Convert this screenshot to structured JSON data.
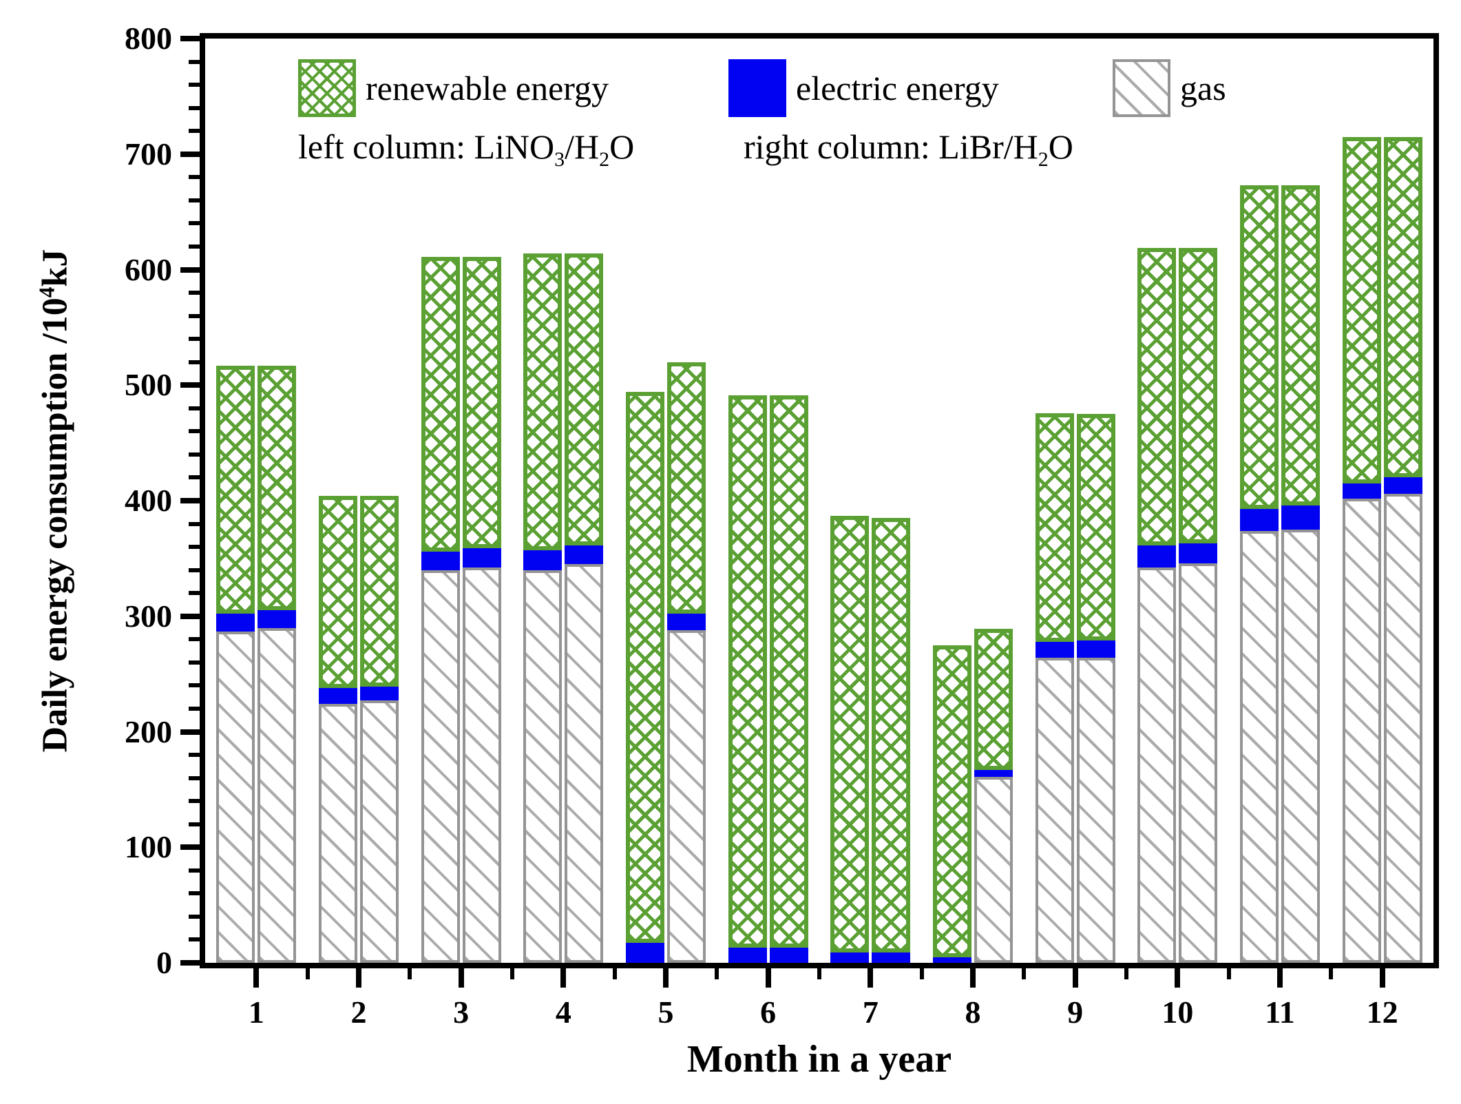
{
  "figure": {
    "y_axis_title": {
      "pre": "Daily energy consumption /10",
      "sup": "4",
      "post": "kJ"
    },
    "x_axis_title": "Month in a year",
    "legend": {
      "renewable_label": "renewable energy",
      "electric_label": "electric energy",
      "gas_label": "gas",
      "note_left": {
        "pre": "left column: LiNO",
        "sub1": "3",
        "mid": "/H",
        "sub2": "2",
        "post": "O"
      },
      "note_right": {
        "pre": "right column: LiBr/H",
        "sub1": "2",
        "post": "O"
      }
    },
    "colors": {
      "renewable": "#5aa033",
      "electric": "#0202f2",
      "gas_line": "#ababab",
      "gas_border": "#949494",
      "axis": "#000000"
    }
  },
  "chart_data": {
    "type": "bar",
    "stacked": true,
    "title": "",
    "xlabel": "Month in a year",
    "ylabel": "Daily energy consumption /10^4 kJ",
    "ylim": [
      0,
      800
    ],
    "ytick_major": 100,
    "ytick_minor": 20,
    "grid": false,
    "legend_position": "top-inside",
    "categories": [
      1,
      2,
      3,
      4,
      5,
      6,
      7,
      8,
      9,
      10,
      11,
      12
    ],
    "columns": [
      {
        "key": "left",
        "label": "LiNO3/H2O"
      },
      {
        "key": "right",
        "label": "LiBr/H2O"
      }
    ],
    "series_order": [
      "gas",
      "electric",
      "renewable"
    ],
    "months": [
      {
        "month": 1,
        "left": {
          "gas": 287,
          "electric": 15,
          "renewable": 215
        },
        "right": {
          "gas": 290,
          "electric": 15,
          "renewable": 212
        }
      },
      {
        "month": 2,
        "left": {
          "gas": 224,
          "electric": 14,
          "renewable": 166
        },
        "right": {
          "gas": 227,
          "electric": 12,
          "renewable": 165
        }
      },
      {
        "month": 3,
        "left": {
          "gas": 340,
          "electric": 16,
          "renewable": 255
        },
        "right": {
          "gas": 342,
          "electric": 17,
          "renewable": 252
        }
      },
      {
        "month": 4,
        "left": {
          "gas": 340,
          "electric": 17,
          "renewable": 257
        },
        "right": {
          "gas": 345,
          "electric": 16,
          "renewable": 253
        }
      },
      {
        "month": 5,
        "left": {
          "gas": 0,
          "electric": 17,
          "renewable": 477
        },
        "right": {
          "gas": 288,
          "electric": 14,
          "renewable": 218
        }
      },
      {
        "month": 6,
        "left": {
          "gas": 0,
          "electric": 13,
          "renewable": 478
        },
        "right": {
          "gas": 0,
          "electric": 13,
          "renewable": 478
        }
      },
      {
        "month": 7,
        "left": {
          "gas": 0,
          "electric": 9,
          "renewable": 378
        },
        "right": {
          "gas": 0,
          "electric": 9,
          "renewable": 376
        }
      },
      {
        "month": 8,
        "left": {
          "gas": 0,
          "electric": 5,
          "renewable": 270
        },
        "right": {
          "gas": 161,
          "electric": 6,
          "renewable": 122
        }
      },
      {
        "month": 9,
        "left": {
          "gas": 264,
          "electric": 14,
          "renewable": 198
        },
        "right": {
          "gas": 264,
          "electric": 15,
          "renewable": 196
        }
      },
      {
        "month": 10,
        "left": {
          "gas": 342,
          "electric": 19,
          "renewable": 258
        },
        "right": {
          "gas": 346,
          "electric": 17,
          "renewable": 256
        }
      },
      {
        "month": 11,
        "left": {
          "gas": 374,
          "electric": 19,
          "renewable": 280
        },
        "right": {
          "gas": 375,
          "electric": 21,
          "renewable": 277
        }
      },
      {
        "month": 12,
        "left": {
          "gas": 402,
          "electric": 13,
          "renewable": 300
        },
        "right": {
          "gas": 406,
          "electric": 14,
          "renewable": 295
        }
      }
    ]
  }
}
